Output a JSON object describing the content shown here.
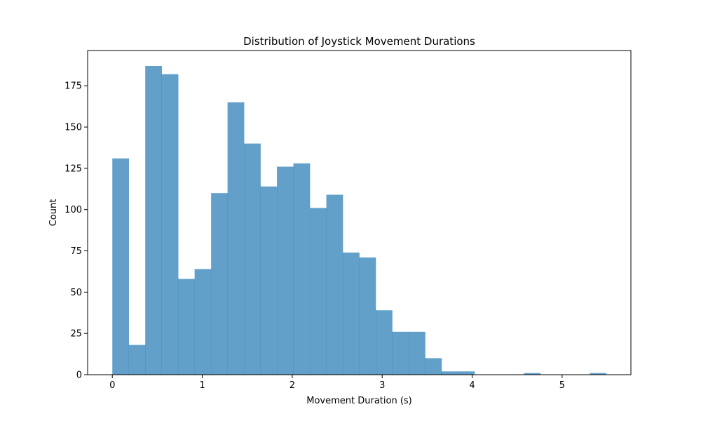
{
  "chart_data": {
    "type": "bar",
    "subtype": "histogram",
    "title": "Distribution of Joystick Movement Durations",
    "xlabel": "Movement Duration (s)",
    "ylabel": "Count",
    "bin_edges": [
      0.0,
      0.183,
      0.366,
      0.549,
      0.732,
      0.915,
      1.098,
      1.281,
      1.464,
      1.647,
      1.83,
      2.013,
      2.196,
      2.379,
      2.562,
      2.745,
      2.928,
      3.111,
      3.294,
      3.477,
      3.66,
      3.843,
      4.026,
      4.209,
      4.392,
      4.575,
      4.758,
      4.941,
      5.124,
      5.307,
      5.49
    ],
    "values": [
      131,
      18,
      187,
      182,
      58,
      64,
      110,
      165,
      140,
      114,
      126,
      128,
      101,
      109,
      74,
      71,
      39,
      26,
      26,
      10,
      2,
      2,
      0,
      0,
      0,
      1,
      0,
      0,
      0,
      1
    ],
    "xlim": [
      -0.2745,
      5.7645
    ],
    "ylim": [
      0,
      196.35
    ],
    "xticks": [
      0,
      1,
      2,
      3,
      4,
      5
    ],
    "xtick_labels": [
      "0",
      "1",
      "2",
      "3",
      "4",
      "5"
    ],
    "yticks": [
      0,
      25,
      50,
      75,
      100,
      125,
      150,
      175
    ],
    "ytick_labels": [
      "0",
      "25",
      "50",
      "75",
      "100",
      "125",
      "150",
      "175"
    ],
    "grid": false,
    "legend": "none",
    "bar_color": "#1f77b4",
    "bar_opacity": 0.7
  }
}
